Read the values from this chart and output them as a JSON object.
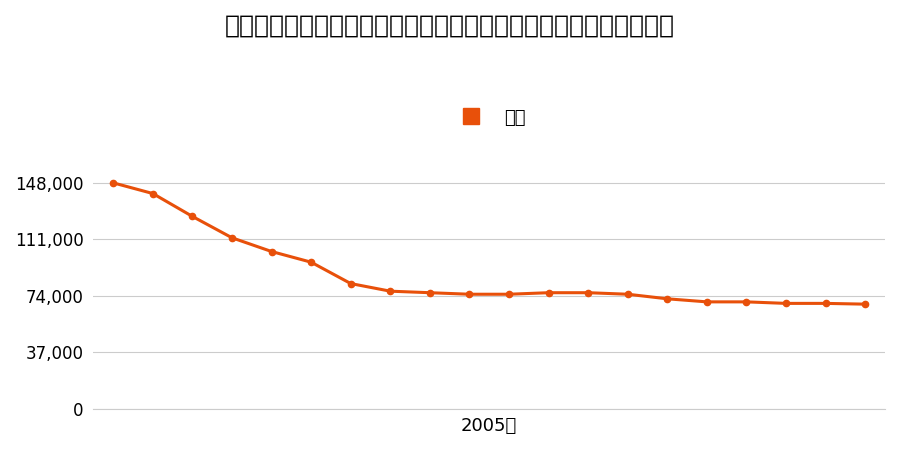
{
  "title": "東京都西多摩郡瑞穂町大字箱根ケ崎字池廻り７５５番２の地価推移",
  "legend_label": "価格",
  "line_color": "#e8500a",
  "marker_color": "#e8500a",
  "background_color": "#ffffff",
  "xlabel": "2005年",
  "years": [
    1997,
    1998,
    1999,
    2000,
    2001,
    2002,
    2003,
    2004,
    2005,
    2006,
    2007,
    2008,
    2009,
    2010,
    2011,
    2012,
    2013,
    2014,
    2015,
    2016
  ],
  "values": [
    148000,
    141000,
    126000,
    112000,
    103000,
    96000,
    82000,
    77000,
    76000,
    75000,
    75000,
    76000,
    76000,
    75000,
    72000,
    70000,
    70000,
    69000,
    69000,
    68500
  ],
  "yticks": [
    0,
    37000,
    74000,
    111000,
    148000
  ],
  "ylim": [
    0,
    162000
  ],
  "grid_color": "#cccccc",
  "title_fontsize": 18,
  "label_fontsize": 13,
  "tick_fontsize": 12
}
